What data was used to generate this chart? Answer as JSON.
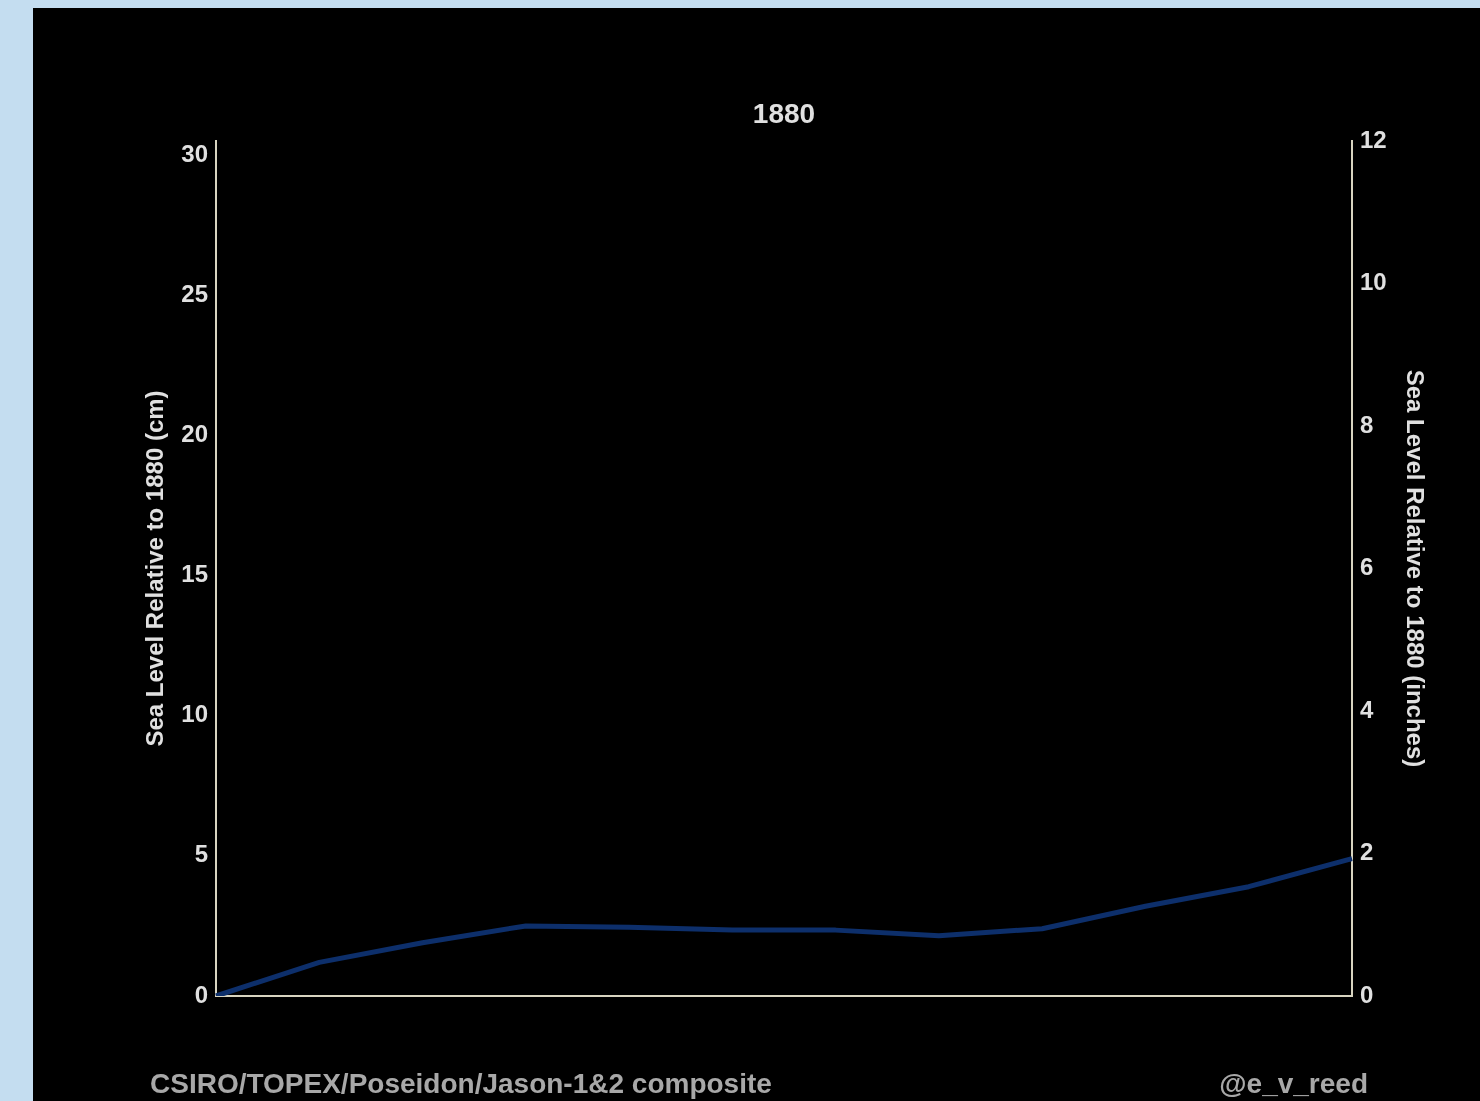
{
  "chart_data": {
    "type": "line",
    "title": "1880",
    "categories": [
      null,
      null,
      null,
      null,
      null,
      null,
      null,
      null,
      null,
      null,
      null,
      null
    ],
    "series": [
      {
        "color": "#0d2f6b",
        "values": [
          0,
          1.2,
          1.9,
          2.5,
          2.45,
          2.35,
          2.35,
          2.15,
          2.4,
          3.2,
          3.9,
          4.9
        ]
      }
    ],
    "ylim": [
      0,
      30.5
    ],
    "yticks": [
      0,
      5,
      10,
      15,
      20,
      25,
      30
    ],
    "y2lim": [
      0,
      12
    ],
    "y2ticks": [
      0,
      2,
      4,
      6,
      8,
      10,
      12
    ],
    "ylabel": "Sea Level Relative to 1880 (cm)",
    "y2label": "Sea Level Relative to 1880 (inches)",
    "tick_labels": "y",
    "marker": "none",
    "annotations": [
      "CSIRO/TOPEX/Poseidon/Jason-1&2 composite",
      "@e_v_reed"
    ]
  }
}
